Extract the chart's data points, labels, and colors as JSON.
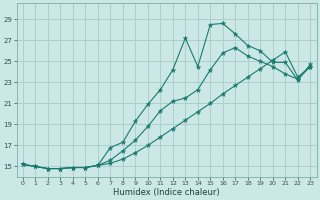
{
  "xlabel": "Humidex (Indice chaleur)",
  "ylabel": "",
  "bg_color": "#cce8e6",
  "grid_color": "#aacfcd",
  "line_color": "#1a7a6e",
  "xlim": [
    -0.5,
    23.5
  ],
  "ylim": [
    14.0,
    30.5
  ],
  "xticks": [
    0,
    1,
    2,
    3,
    4,
    5,
    6,
    7,
    8,
    9,
    10,
    11,
    12,
    13,
    14,
    15,
    16,
    17,
    18,
    19,
    20,
    21,
    22,
    23
  ],
  "yticks": [
    15,
    17,
    19,
    21,
    23,
    25,
    27,
    29
  ],
  "series": [
    [
      15.2,
      15.0,
      14.8,
      14.8,
      14.9,
      14.9,
      15.1,
      16.8,
      17.3,
      19.3,
      20.9,
      22.3,
      24.2,
      27.2,
      24.5,
      28.5,
      28.6,
      27.6,
      26.5,
      26.0,
      24.9,
      24.9,
      23.2,
      24.7
    ],
    [
      15.2,
      15.0,
      14.8,
      14.8,
      14.9,
      14.9,
      15.1,
      15.6,
      16.5,
      17.5,
      18.8,
      20.3,
      21.2,
      21.5,
      22.3,
      24.2,
      25.8,
      26.3,
      25.5,
      25.0,
      24.5,
      23.8,
      23.3,
      24.5
    ],
    [
      15.2,
      15.0,
      14.8,
      14.8,
      14.9,
      14.9,
      15.1,
      15.3,
      15.7,
      16.3,
      17.0,
      17.8,
      18.6,
      19.4,
      20.2,
      21.0,
      21.9,
      22.7,
      23.5,
      24.3,
      25.1,
      25.9,
      23.5,
      24.5
    ]
  ]
}
